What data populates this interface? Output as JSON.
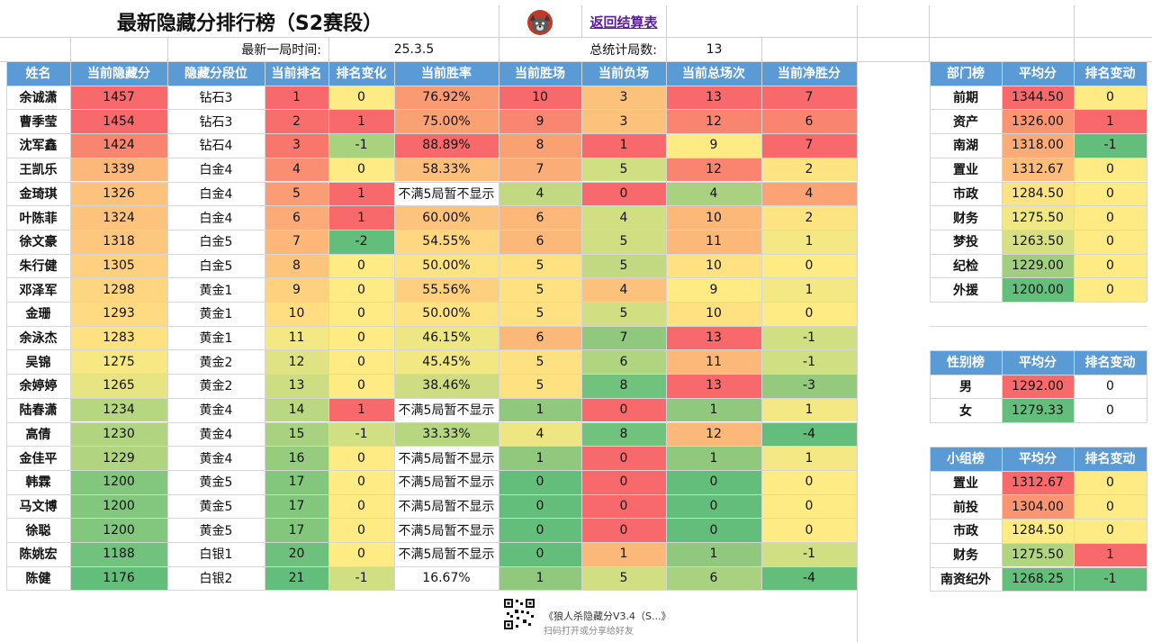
{
  "title": "最新隐藏分排行榜（S2赛段）",
  "back_link": "返回结算表",
  "latest_game_label": "最新一局时间:",
  "latest_game_value": "25.3.5",
  "total_games_label": "总统计局数:",
  "total_games_value": "13",
  "main_table": {
    "headers": [
      "姓名",
      "当前隐藏分",
      "隐藏分段位",
      "当前排名",
      "排名变化",
      "当前胜率",
      "当前胜场",
      "当前负场",
      "当前总场次",
      "当前净胜分"
    ],
    "rows": [
      [
        "余诚潇",
        "1457",
        "钻石3",
        "1",
        "0",
        "76.92%",
        "10",
        "3",
        "13",
        "7"
      ],
      [
        "曹季莹",
        "1454",
        "钻石3",
        "2",
        "1",
        "75.00%",
        "9",
        "3",
        "12",
        "6"
      ],
      [
        "沈军鑫",
        "1424",
        "钻石4",
        "3",
        "-1",
        "88.89%",
        "8",
        "1",
        "9",
        "7"
      ],
      [
        "王凯乐",
        "1339",
        "白金4",
        "4",
        "0",
        "58.33%",
        "7",
        "5",
        "12",
        "2"
      ],
      [
        "金琦琪",
        "1326",
        "白金4",
        "5",
        "1",
        "不满5局暂不显示",
        "4",
        "0",
        "4",
        "4"
      ],
      [
        "叶陈菲",
        "1324",
        "白金4",
        "6",
        "1",
        "60.00%",
        "6",
        "4",
        "10",
        "2"
      ],
      [
        "徐文豪",
        "1318",
        "白金5",
        "7",
        "-2",
        "54.55%",
        "6",
        "5",
        "11",
        "1"
      ],
      [
        "朱行健",
        "1305",
        "白金5",
        "8",
        "0",
        "50.00%",
        "5",
        "5",
        "10",
        "0"
      ],
      [
        "邓泽军",
        "1298",
        "黄金1",
        "9",
        "0",
        "55.56%",
        "5",
        "4",
        "9",
        "1"
      ],
      [
        "金珊",
        "1293",
        "黄金1",
        "10",
        "0",
        "50.00%",
        "5",
        "5",
        "10",
        "0"
      ],
      [
        "余泳杰",
        "1283",
        "黄金1",
        "11",
        "0",
        "46.15%",
        "6",
        "7",
        "13",
        "-1"
      ],
      [
        "吴锦",
        "1275",
        "黄金2",
        "12",
        "0",
        "45.45%",
        "5",
        "6",
        "11",
        "-1"
      ],
      [
        "余婷婷",
        "1265",
        "黄金2",
        "13",
        "0",
        "38.46%",
        "5",
        "8",
        "13",
        "-3"
      ],
      [
        "陆春潇",
        "1234",
        "黄金4",
        "14",
        "1",
        "不满5局暂不显示",
        "1",
        "0",
        "1",
        "1"
      ],
      [
        "高倩",
        "1230",
        "黄金4",
        "15",
        "-1",
        "33.33%",
        "4",
        "8",
        "12",
        "-4"
      ],
      [
        "金佳平",
        "1229",
        "黄金4",
        "16",
        "0",
        "不满5局暂不显示",
        "1",
        "0",
        "1",
        "1"
      ],
      [
        "韩霖",
        "1200",
        "黄金5",
        "17",
        "0",
        "不满5局暂不显示",
        "0",
        "0",
        "0",
        "0"
      ],
      [
        "马文博",
        "1200",
        "黄金5",
        "17",
        "0",
        "不满5局暂不显示",
        "0",
        "0",
        "0",
        "0"
      ],
      [
        "徐聪",
        "1200",
        "黄金5",
        "17",
        "0",
        "不满5局暂不显示",
        "0",
        "0",
        "0",
        "0"
      ],
      [
        "陈姚宏",
        "1188",
        "白银1",
        "20",
        "0",
        "不满5局暂不显示",
        "0",
        "1",
        "1",
        "-1"
      ],
      [
        "陈健",
        "1176",
        "白银2",
        "21",
        "-1",
        "16.67%",
        "1",
        "5",
        "6",
        "-4"
      ]
    ],
    "colors": [
      [
        "#ffffff",
        "#f8696b",
        "#ffffff",
        "#f8696b",
        "#ffeb84",
        "#fa9a73",
        "#f8696b",
        "#fcc17b",
        "#f8696b",
        "#f8696b"
      ],
      [
        "#ffffff",
        "#f8696b",
        "#ffffff",
        "#f86e6c",
        "#f8696b",
        "#faa174",
        "#f98670",
        "#fcc17b",
        "#f98570",
        "#f98570"
      ],
      [
        "#ffffff",
        "#f98570",
        "#ffffff",
        "#f9766d",
        "#a9d27f",
        "#f8696b",
        "#faa174",
        "#f8696b",
        "#ffeb84",
        "#f8696b"
      ],
      [
        "#ffffff",
        "#fcb879",
        "#ffffff",
        "#fa8e72",
        "#ffeb84",
        "#fcbf7b",
        "#fbad77",
        "#d1df82",
        "#f98570",
        "#fee382"
      ],
      [
        "#ffffff",
        "#fdc27c",
        "#ffffff",
        "#fb9d74",
        "#f8696b",
        "#ffffff",
        "#c1da81",
        "#f8696b",
        "#a8d27f",
        "#fca376"
      ],
      [
        "#ffffff",
        "#fdc37c",
        "#ffffff",
        "#fcaa77",
        "#f8696b",
        "#fcc37c",
        "#fcb879",
        "#d1df82",
        "#fcb879",
        "#fee382"
      ],
      [
        "#ffffff",
        "#fdc87d",
        "#ffffff",
        "#fdb779",
        "#63be7b",
        "#fed780",
        "#fcb879",
        "#d1df82",
        "#fcb879",
        "#f3e884"
      ],
      [
        "#ffffff",
        "#fed07f",
        "#ffffff",
        "#fdc47c",
        "#ffeb84",
        "#fee382",
        "#fee282",
        "#c1da81",
        "#fee282",
        "#ffeb84"
      ],
      [
        "#ffffff",
        "#fed680",
        "#ffffff",
        "#fed17e",
        "#ffeb84",
        "#fdd07f",
        "#fee282",
        "#fcc17b",
        "#ffeb84",
        "#f3e884"
      ],
      [
        "#ffffff",
        "#feda81",
        "#ffffff",
        "#ffdd81",
        "#ffeb84",
        "#fee382",
        "#fee282",
        "#d1df82",
        "#fee282",
        "#ffeb84"
      ],
      [
        "#ffffff",
        "#fee282",
        "#ffffff",
        "#f3e884",
        "#ffeb84",
        "#eee683",
        "#fcb879",
        "#90c97e",
        "#f8696b",
        "#d0df81"
      ],
      [
        "#ffffff",
        "#f7e883",
        "#ffffff",
        "#e0e383",
        "#ffeb84",
        "#f1e783",
        "#fee282",
        "#b0d480",
        "#fcb879",
        "#d0df81"
      ],
      [
        "#ffffff",
        "#e7e482",
        "#ffffff",
        "#cddd82",
        "#ffeb84",
        "#cedd82",
        "#fee282",
        "#70c27c",
        "#f8696b",
        "#95ca7e"
      ],
      [
        "#ffffff",
        "#b7d680",
        "#ffffff",
        "#bad781",
        "#f8696b",
        "#ffffff",
        "#90c97e",
        "#f8696b",
        "#90c97e",
        "#f3e884"
      ],
      [
        "#ffffff",
        "#b1d480",
        "#ffffff",
        "#a8d27f",
        "#d0df81",
        "#b7d680",
        "#eee683",
        "#70c27c",
        "#fcb879",
        "#63be7b"
      ],
      [
        "#ffffff",
        "#b0d480",
        "#ffffff",
        "#95cc7e",
        "#ffeb84",
        "#ffffff",
        "#90c97e",
        "#f8696b",
        "#90c97e",
        "#f3e884"
      ],
      [
        "#ffffff",
        "#82c77d",
        "#ffffff",
        "#83c77d",
        "#ffeb84",
        "#ffffff",
        "#63be7b",
        "#f8696b",
        "#63be7b",
        "#ffeb84"
      ],
      [
        "#ffffff",
        "#82c77d",
        "#ffffff",
        "#83c77d",
        "#ffeb84",
        "#ffffff",
        "#63be7b",
        "#f8696b",
        "#63be7b",
        "#ffeb84"
      ],
      [
        "#ffffff",
        "#82c77d",
        "#ffffff",
        "#83c77d",
        "#ffeb84",
        "#ffffff",
        "#63be7b",
        "#f8696b",
        "#63be7b",
        "#ffeb84"
      ],
      [
        "#ffffff",
        "#70c27c",
        "#ffffff",
        "#6ec17c",
        "#ffeb84",
        "#ffffff",
        "#63be7b",
        "#fcb879",
        "#90c97e",
        "#d0df81"
      ],
      [
        "#ffffff",
        "#63be7b",
        "#ffffff",
        "#63be7b",
        "#d0df81",
        "#ffffff",
        "#90c97e",
        "#d1df82",
        "#a8d27f",
        "#63be7b"
      ]
    ]
  },
  "dept_table": {
    "headers": [
      "部门榜",
      "平均分",
      "排名变动"
    ],
    "rows": [
      [
        "前期",
        "1344.50",
        "0"
      ],
      [
        "资产",
        "1326.00",
        "1"
      ],
      [
        "南湖",
        "1318.00",
        "-1"
      ],
      [
        "置业",
        "1312.67",
        "0"
      ],
      [
        "市政",
        "1284.50",
        "0"
      ],
      [
        "财务",
        "1275.50",
        "0"
      ],
      [
        "梦投",
        "1263.50",
        "0"
      ],
      [
        "纪检",
        "1229.00",
        "0"
      ],
      [
        "外援",
        "1200.00",
        "0"
      ]
    ],
    "colors": [
      [
        "#ffffff",
        "#f8696b",
        "#ffeb84"
      ],
      [
        "#ffffff",
        "#fa9572",
        "#f8696b"
      ],
      [
        "#ffffff",
        "#fbab77",
        "#63be7b"
      ],
      [
        "#ffffff",
        "#fcbc7a",
        "#ffeb84"
      ],
      [
        "#ffffff",
        "#fee382",
        "#ffeb84"
      ],
      [
        "#ffffff",
        "#f1e783",
        "#ffeb84"
      ],
      [
        "#ffffff",
        "#d6e082",
        "#ffeb84"
      ],
      [
        "#ffffff",
        "#a1cf7f",
        "#ffeb84"
      ],
      [
        "#ffffff",
        "#63be7b",
        "#ffeb84"
      ]
    ]
  },
  "gender_table": {
    "headers": [
      "性别榜",
      "平均分",
      "排名变动"
    ],
    "rows": [
      [
        "男",
        "1292.00",
        "0"
      ],
      [
        "女",
        "1279.33",
        "0"
      ]
    ],
    "colors": [
      [
        "#ffffff",
        "#f8696b",
        "#ffffff"
      ],
      [
        "#ffffff",
        "#63be7b",
        "#ffffff"
      ]
    ]
  },
  "group_table": {
    "headers": [
      "小组榜",
      "平均分",
      "排名变动"
    ],
    "rows": [
      [
        "置业",
        "1312.67",
        "0"
      ],
      [
        "前投",
        "1304.00",
        "0"
      ],
      [
        "市政",
        "1284.50",
        "0"
      ],
      [
        "财务",
        "1275.50",
        "1"
      ],
      [
        "南资纪外",
        "1268.25",
        "-1"
      ]
    ],
    "colors": [
      [
        "#ffffff",
        "#f8696b",
        "#ffeb84"
      ],
      [
        "#ffffff",
        "#fa9572",
        "#ffeb84"
      ],
      [
        "#ffffff",
        "#ffeb84",
        "#ffeb84"
      ],
      [
        "#ffffff",
        "#b1d480",
        "#f8696b"
      ],
      [
        "#ffffff",
        "#63be7b",
        "#63be7b"
      ]
    ]
  },
  "footer": {
    "doc_title": "《狼人杀隐藏分V3.4（S...》",
    "share_text": "扫码打开或分享给好友"
  }
}
